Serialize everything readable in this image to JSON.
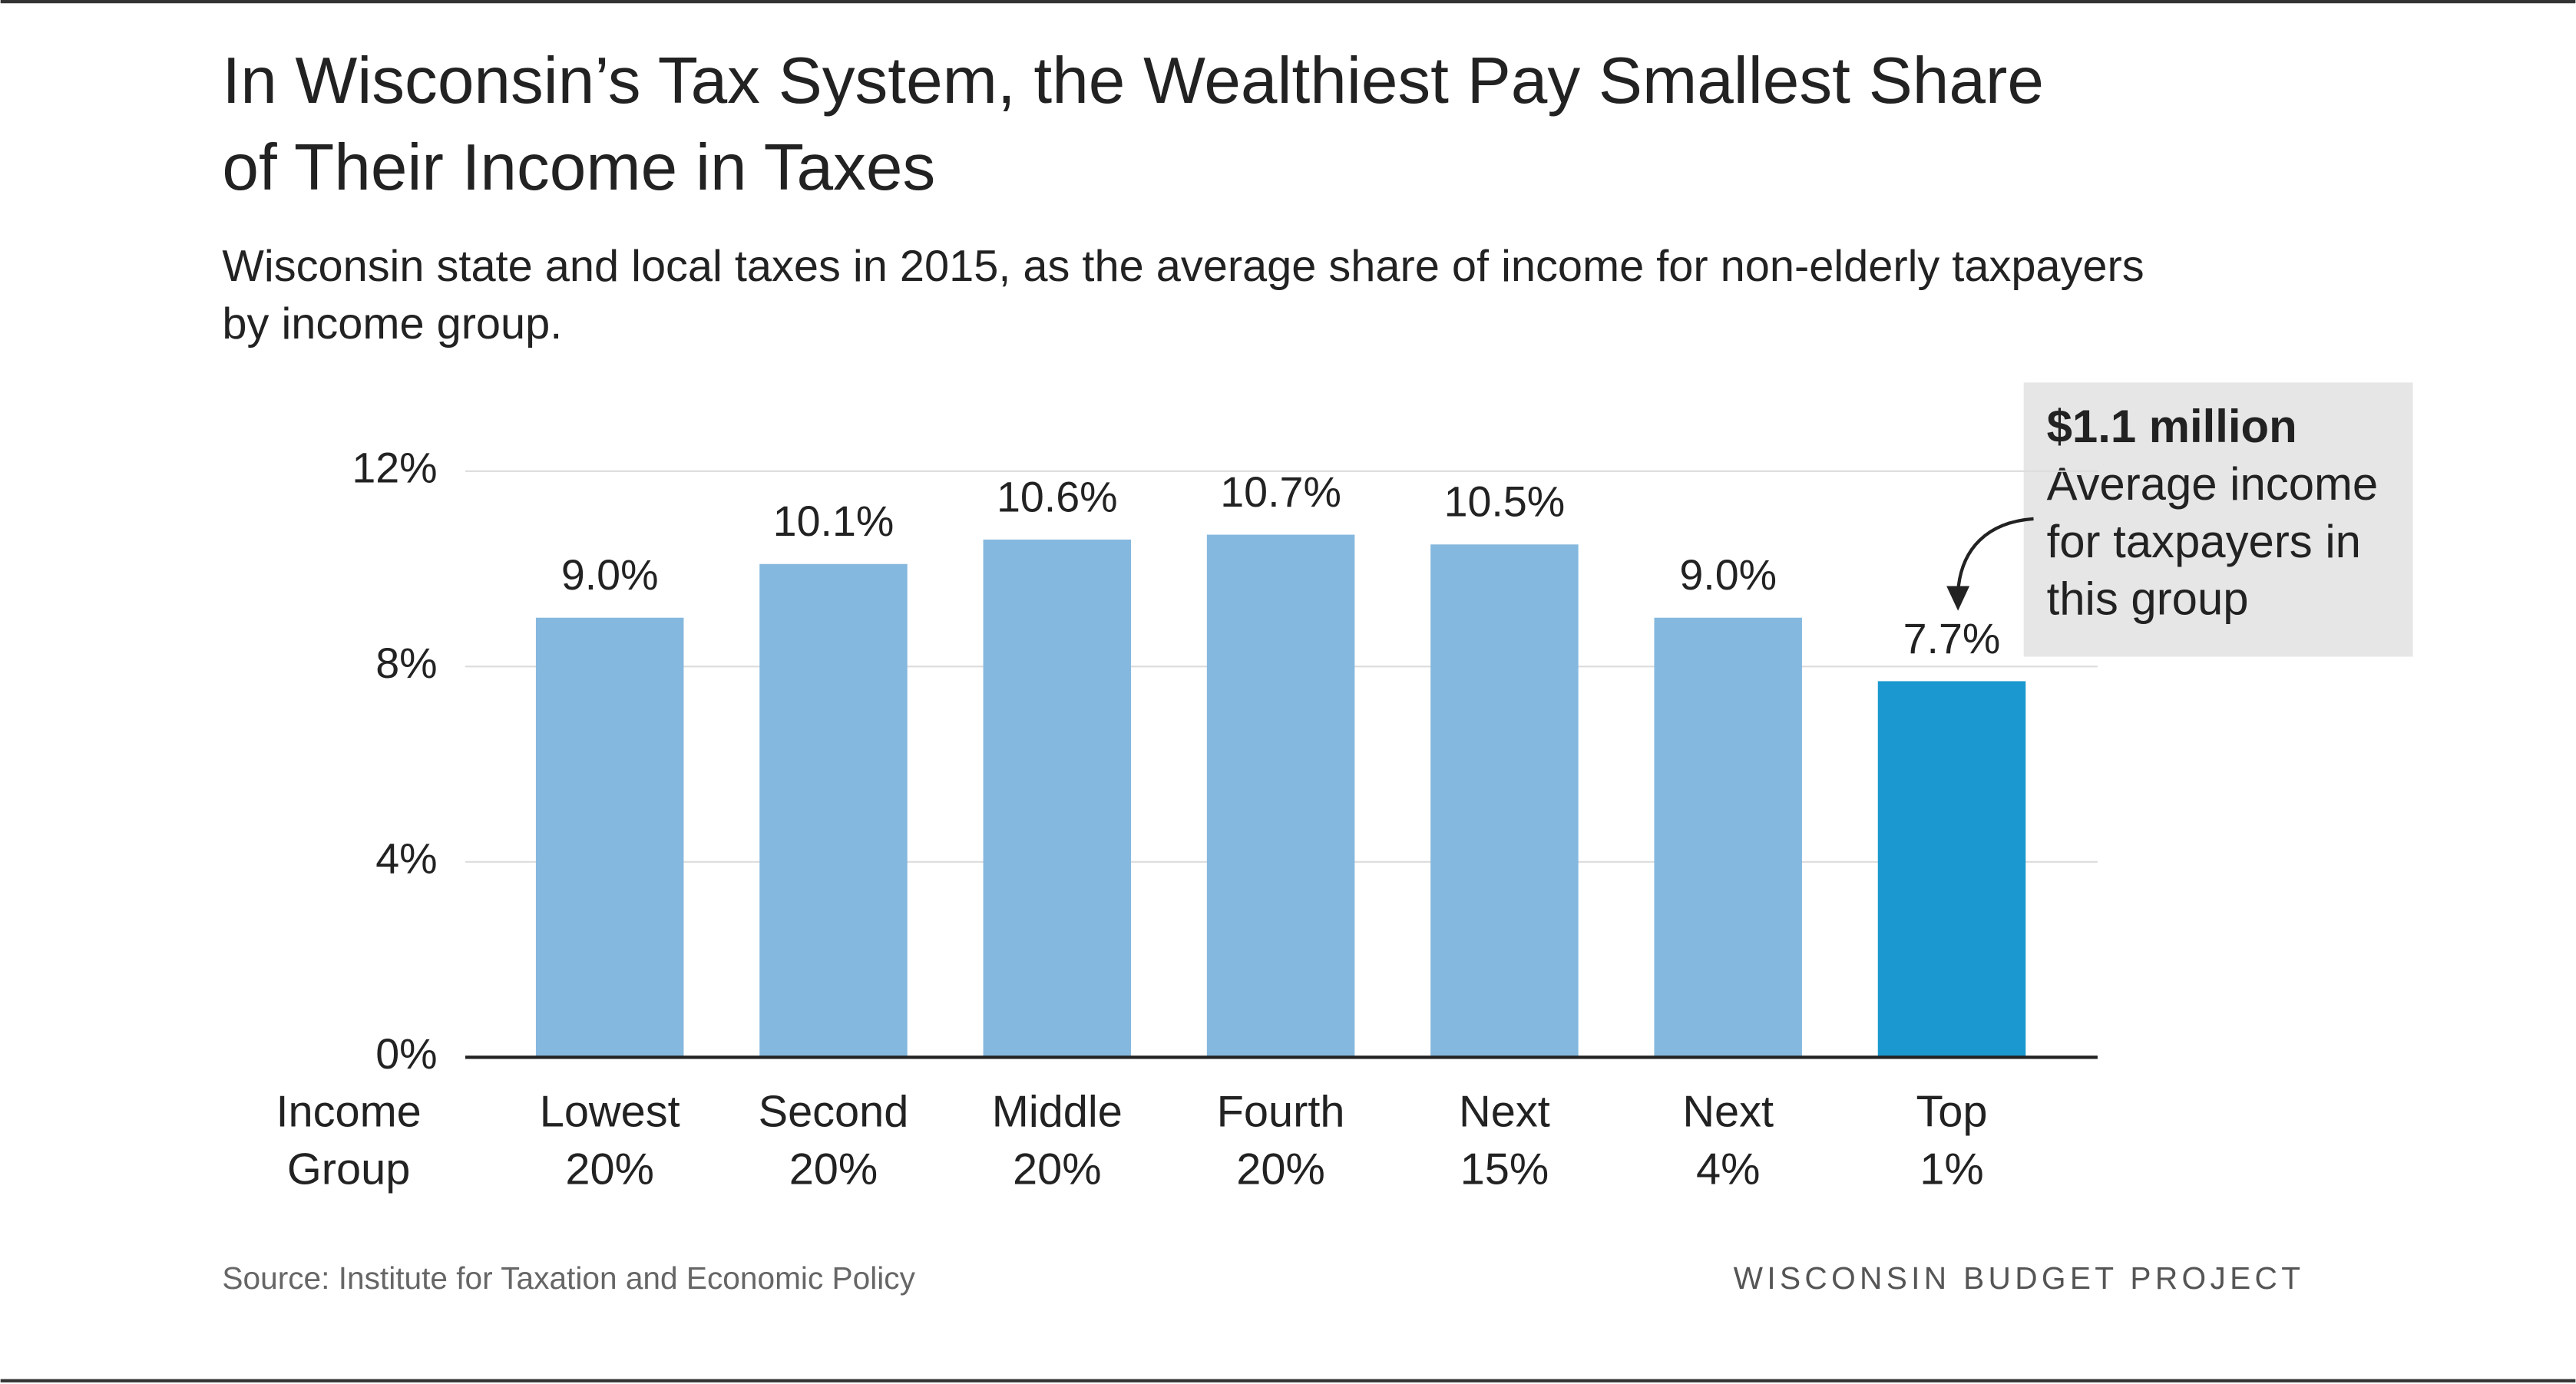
{
  "chart_data": {
    "type": "bar",
    "title": [
      "In Wisconsin’s Tax System, the Wealthiest Pay Smallest Share",
      "of Their Income in Taxes"
    ],
    "subtitle": [
      "Wisconsin state and local taxes in 2015, as the average share of income for non-elderly taxpayers",
      "by income group."
    ],
    "x_label": [
      "Income",
      "Group"
    ],
    "categories": [
      [
        "Lowest",
        "20%"
      ],
      [
        "Second",
        "20%"
      ],
      [
        "Middle",
        "20%"
      ],
      [
        "Fourth",
        "20%"
      ],
      [
        "Next",
        "15%"
      ],
      [
        "Next",
        "4%"
      ],
      [
        "Top",
        "1%"
      ]
    ],
    "values": [
      9.0,
      10.1,
      10.6,
      10.7,
      10.5,
      9.0,
      7.7
    ],
    "value_labels": [
      "9.0%",
      "10.1%",
      "10.6%",
      "10.7%",
      "10.5%",
      "9.0%",
      "7.7%"
    ],
    "colors": [
      "#85b8de",
      "#85b8de",
      "#85b8de",
      "#85b8de",
      "#85b8de",
      "#85b8de",
      "#1b98cf"
    ],
    "ylim": [
      0,
      12
    ],
    "yticks": [
      {
        "value": 0,
        "label": "0%"
      },
      {
        "value": 4,
        "label": "4%"
      },
      {
        "value": 8,
        "label": "8%"
      },
      {
        "value": 12,
        "label": "12%"
      }
    ],
    "grid": true,
    "annotation": {
      "heading": "$1.1 million",
      "lines": [
        "Average income",
        "for taxpayers in",
        "this group"
      ]
    },
    "source": "Source: Institute for Taxation and Economic Policy",
    "brand": "WISCONSIN BUDGET PROJECT"
  }
}
